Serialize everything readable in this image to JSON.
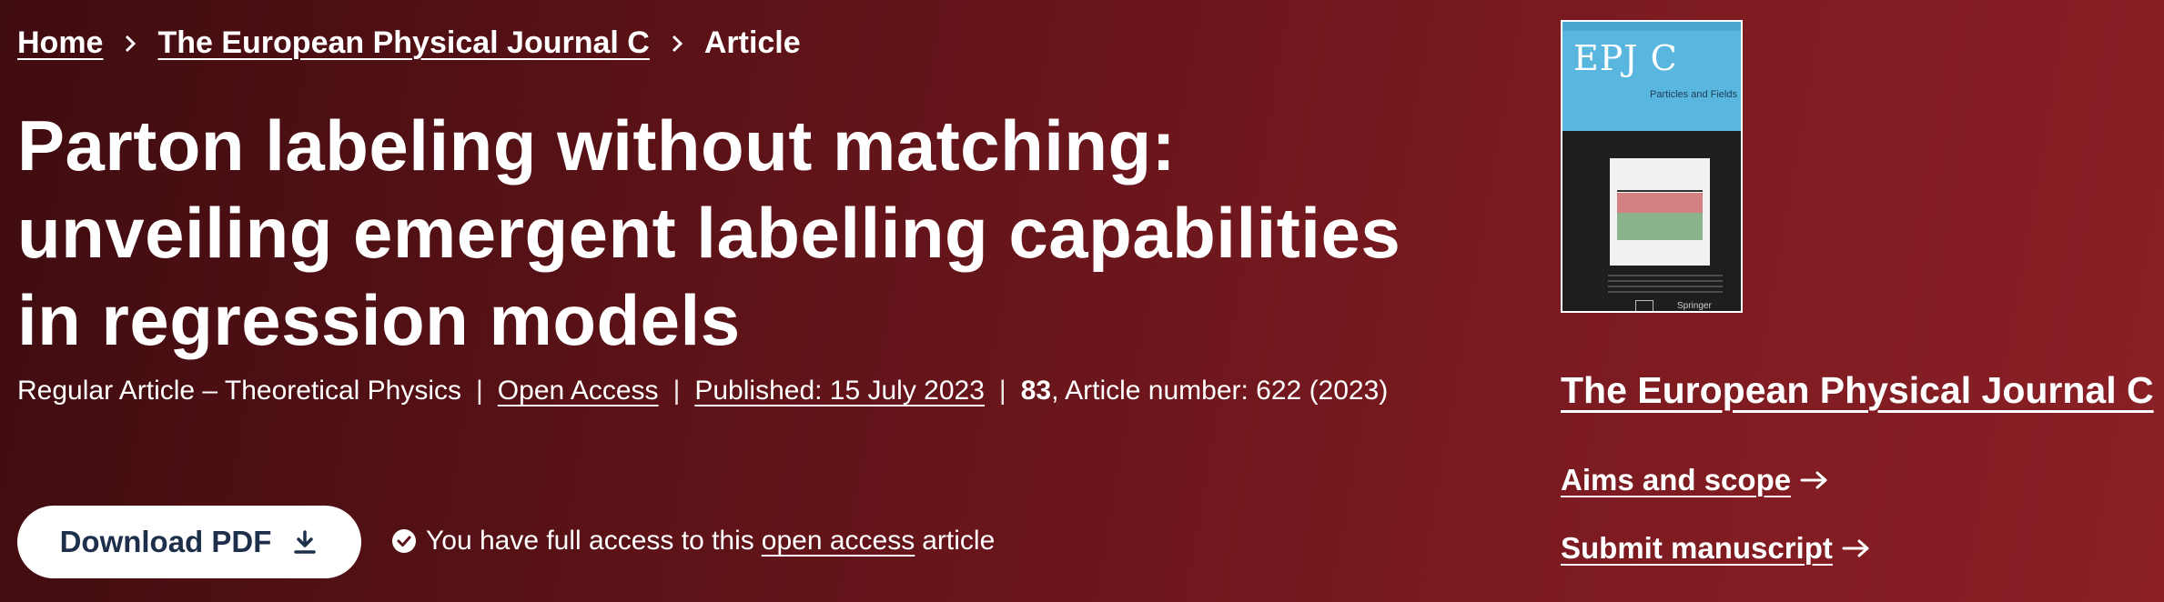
{
  "breadcrumb": {
    "home": "Home",
    "journal": "The European Physical Journal C",
    "current": "Article",
    "separator_icon": "chevron-right-icon"
  },
  "article": {
    "title": "Parton labeling without matching: unveiling emergent labelling capabilities in regression models",
    "type": "Regular Article – Theoretical Physics",
    "open_access": "Open Access",
    "published": "Published: 15 July 2023",
    "volume": "83",
    "article_number": ", Article number: 622 (2023)"
  },
  "actions": {
    "download_label": "Download PDF",
    "download_icon": "download-icon",
    "access_prefix": "You have full access to this",
    "access_link": "open access",
    "access_suffix": "article",
    "access_icon": "check-circle-icon"
  },
  "journal": {
    "cover_title": "EPJ C",
    "cover_subtitle": "Particles and Fields",
    "cover_publisher": "Springer",
    "name": "The European Physical Journal C",
    "aims": "Aims and scope",
    "submit": "Submit manuscript",
    "arrow_icon": "arrow-right-icon"
  },
  "colors": {
    "background_dark": "#3f0c10",
    "background_light": "#8a2026",
    "button_text": "#1d2f4a",
    "cover_blue": "#59b7df"
  }
}
